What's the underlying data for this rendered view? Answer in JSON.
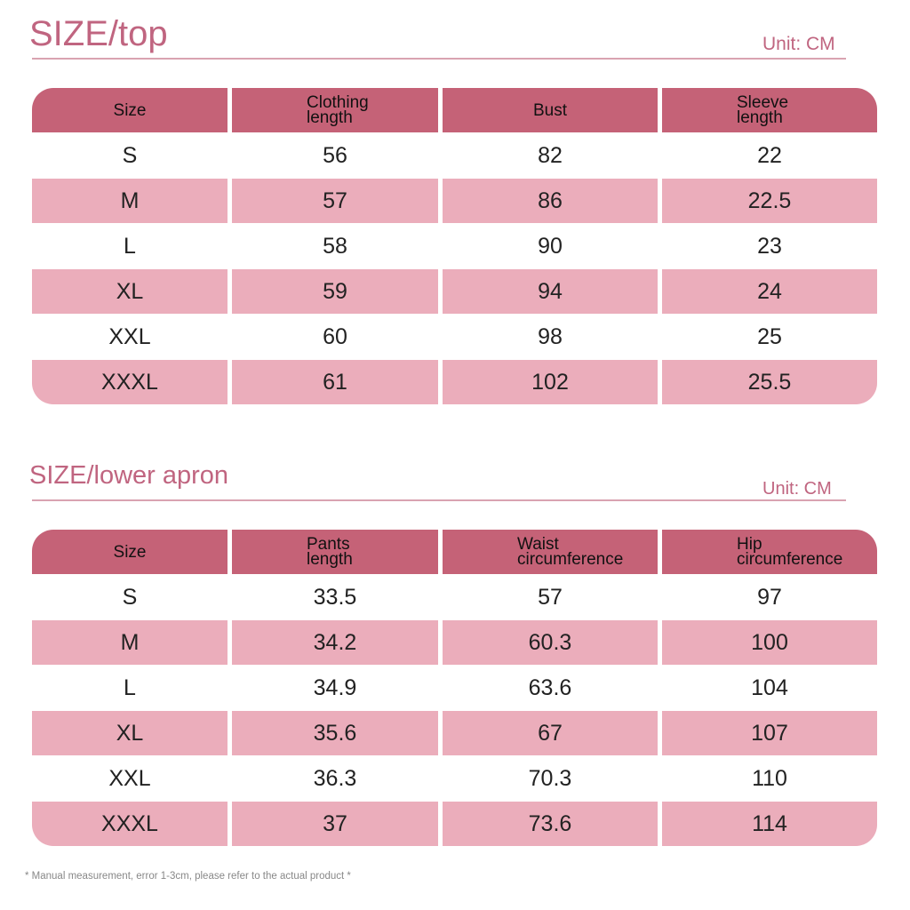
{
  "top": {
    "title": "SIZE/top",
    "unit": "Unit: CM",
    "headers": [
      "Size",
      "Clothing\nlength",
      "Bust",
      "Sleeve\nlength"
    ],
    "rows": [
      [
        "S",
        "56",
        "82",
        "22"
      ],
      [
        "M",
        "57",
        "86",
        "22.5"
      ],
      [
        "L",
        "58",
        "90",
        "23"
      ],
      [
        "XL",
        "59",
        "94",
        "24"
      ],
      [
        "XXL",
        "60",
        "98",
        "25"
      ],
      [
        "XXXL",
        "61",
        "102",
        "25.5"
      ]
    ]
  },
  "bottom": {
    "title": "SIZE/lower apron",
    "unit": "Unit: CM",
    "headers": [
      "Size",
      "Pants\nlength",
      "Waist\ncircumference",
      "Hip\ncircumference"
    ],
    "rows": [
      [
        "S",
        "33.5",
        "57",
        "97"
      ],
      [
        "M",
        "34.2",
        "60.3",
        "100"
      ],
      [
        "L",
        "34.9",
        "63.6",
        "104"
      ],
      [
        "XL",
        "35.6",
        "67",
        "107"
      ],
      [
        "XXL",
        "36.3",
        "70.3",
        "110"
      ],
      [
        "XXXL",
        "37",
        "73.6",
        "114"
      ]
    ]
  },
  "note": "* Manual measurement, error 1-3cm, please refer to the actual product *",
  "colors": {
    "header": "#c56277",
    "stripe": "#ebadbb",
    "title": "#c06580"
  }
}
